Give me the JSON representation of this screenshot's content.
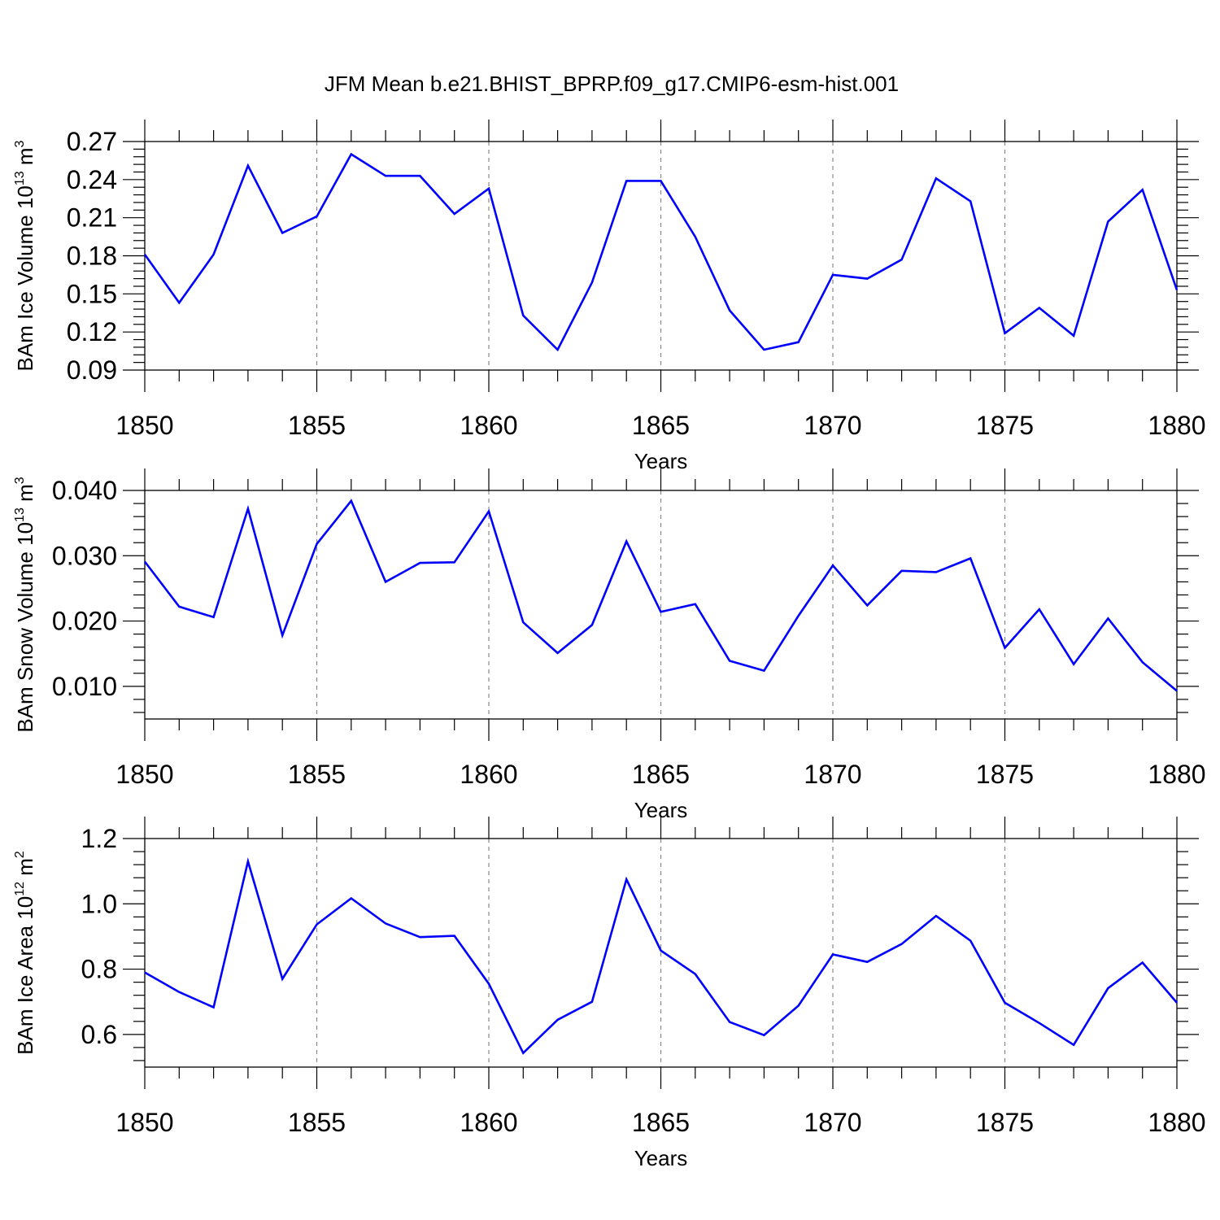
{
  "title": "JFM Mean b.e21.BHIST_BPRP.f09_g17.CMIP6-esm-hist.001",
  "chart_data": [
    {
      "type": "line",
      "xlabel": "Years",
      "ylabel": "BAm Ice Volume 10",
      "ylabel_sup": "13",
      "ylabel_unit": " m",
      "ylabel_unit_sup": "3",
      "xlim": [
        1850,
        1880
      ],
      "ylim": [
        0.09,
        0.27
      ],
      "yticks": [
        0.09,
        0.12,
        0.15,
        0.18,
        0.21,
        0.24,
        0.27
      ],
      "ytick_labels": [
        "0.09",
        "0.12",
        "0.15",
        "0.18",
        "0.21",
        "0.24",
        "0.27"
      ],
      "xticks": [
        1850,
        1855,
        1860,
        1865,
        1870,
        1875,
        1880
      ],
      "xtick_labels": [
        "1850",
        "1855",
        "1860",
        "1865",
        "1870",
        "1875",
        "1880"
      ],
      "grid": "vertical dashed at major x ticks",
      "series_color": "#0000ff",
      "x": [
        1850,
        1851,
        1852,
        1853,
        1854,
        1855,
        1856,
        1857,
        1858,
        1859,
        1860,
        1861,
        1862,
        1863,
        1864,
        1865,
        1866,
        1867,
        1868,
        1869,
        1870,
        1871,
        1872,
        1873,
        1874,
        1875,
        1876,
        1877,
        1878,
        1879,
        1880
      ],
      "values": [
        0.181,
        0.143,
        0.181,
        0.251,
        0.198,
        0.211,
        0.26,
        0.243,
        0.243,
        0.213,
        0.233,
        0.133,
        0.106,
        0.159,
        0.239,
        0.239,
        0.195,
        0.137,
        0.106,
        0.112,
        0.165,
        0.162,
        0.177,
        0.241,
        0.223,
        0.119,
        0.139,
        0.117,
        0.207,
        0.232,
        0.153
      ]
    },
    {
      "type": "line",
      "xlabel": "Years",
      "ylabel": "BAm Snow Volume 10",
      "ylabel_sup": "13",
      "ylabel_unit": " m",
      "ylabel_unit_sup": "3",
      "xlim": [
        1850,
        1880
      ],
      "ylim": [
        0.005,
        0.04
      ],
      "yticks": [
        0.01,
        0.02,
        0.03,
        0.04
      ],
      "ytick_labels": [
        "0.010",
        "0.020",
        "0.030",
        "0.040"
      ],
      "xticks": [
        1850,
        1855,
        1860,
        1865,
        1870,
        1875,
        1880
      ],
      "xtick_labels": [
        "1850",
        "1855",
        "1860",
        "1865",
        "1870",
        "1875",
        "1880"
      ],
      "grid": "vertical dashed at major x ticks",
      "series_color": "#0000ff",
      "x": [
        1850,
        1851,
        1852,
        1853,
        1854,
        1855,
        1856,
        1857,
        1858,
        1859,
        1860,
        1861,
        1862,
        1863,
        1864,
        1865,
        1866,
        1867,
        1868,
        1869,
        1870,
        1871,
        1872,
        1873,
        1874,
        1875,
        1876,
        1877,
        1878,
        1879,
        1880
      ],
      "values": [
        0.0291,
        0.0222,
        0.0206,
        0.0372,
        0.0178,
        0.0318,
        0.0384,
        0.026,
        0.0289,
        0.029,
        0.0368,
        0.0198,
        0.0151,
        0.0194,
        0.0322,
        0.0214,
        0.0226,
        0.0139,
        0.0124,
        0.0208,
        0.0285,
        0.0224,
        0.0277,
        0.0275,
        0.0296,
        0.0159,
        0.0218,
        0.0134,
        0.0204,
        0.0137,
        0.0093
      ]
    },
    {
      "type": "line",
      "xlabel": "Years",
      "ylabel": "BAm Ice Area 10",
      "ylabel_sup": "12",
      "ylabel_unit": " m",
      "ylabel_unit_sup": "2",
      "xlim": [
        1850,
        1880
      ],
      "ylim": [
        0.5,
        1.2
      ],
      "yticks": [
        0.6,
        0.8,
        1.0,
        1.2
      ],
      "ytick_labels": [
        "0.6",
        "0.8",
        "1.0",
        "1.2"
      ],
      "xticks": [
        1850,
        1855,
        1860,
        1865,
        1870,
        1875,
        1880
      ],
      "xtick_labels": [
        "1850",
        "1855",
        "1860",
        "1865",
        "1870",
        "1875",
        "1880"
      ],
      "grid": "vertical dashed at major x ticks",
      "series_color": "#0000ff",
      "x": [
        1850,
        1851,
        1852,
        1853,
        1854,
        1855,
        1856,
        1857,
        1858,
        1859,
        1860,
        1861,
        1862,
        1863,
        1864,
        1865,
        1866,
        1867,
        1868,
        1869,
        1870,
        1871,
        1872,
        1873,
        1874,
        1875,
        1876,
        1877,
        1878,
        1879,
        1880
      ],
      "values": [
        0.79,
        0.73,
        0.683,
        1.13,
        0.77,
        0.937,
        1.017,
        0.94,
        0.898,
        0.902,
        0.755,
        0.543,
        0.645,
        0.7,
        1.075,
        0.857,
        0.785,
        0.638,
        0.598,
        0.688,
        0.845,
        0.822,
        0.877,
        0.963,
        0.887,
        0.697,
        0.635,
        0.568,
        0.742,
        0.82,
        0.697
      ]
    }
  ]
}
